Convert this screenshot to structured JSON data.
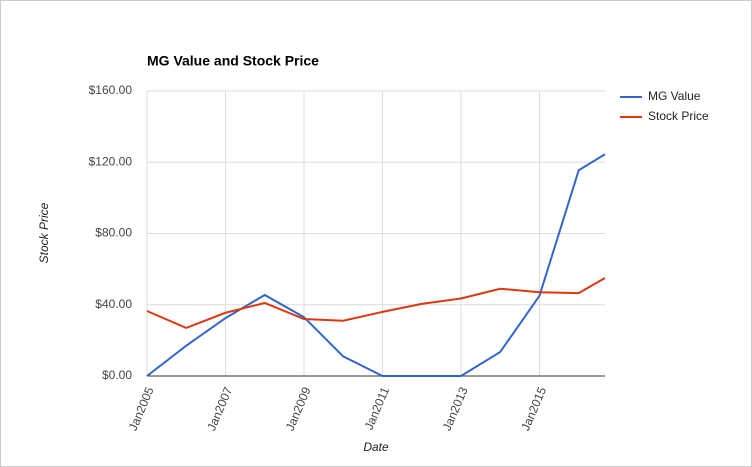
{
  "chart_data": {
    "type": "line",
    "title": "MG Value and Stock Price",
    "x_label": "Date",
    "y_label": "Stock Price",
    "x": [
      2005,
      2006,
      2007,
      2008,
      2009,
      2010,
      2011,
      2012,
      2013,
      2014,
      2015,
      2016,
      2016.67
    ],
    "series": [
      {
        "name": "MG Value",
        "color": "#3366cc",
        "values": [
          0,
          17,
          32.5,
          45.5,
          33,
          11,
          0,
          0,
          0,
          13.5,
          45,
          115.5,
          124.5
        ]
      },
      {
        "name": "Stock Price",
        "color": "#dc3912",
        "values": [
          36.5,
          27,
          35.5,
          41,
          32,
          31,
          36,
          40.5,
          43.5,
          49,
          47,
          46.5,
          55
        ]
      }
    ],
    "xlim": [
      2005,
      2016.67
    ],
    "xticks": [
      {
        "value": 2005,
        "label": "Jan2005"
      },
      {
        "value": 2007,
        "label": "Jan2007"
      },
      {
        "value": 2009,
        "label": "Jan2009"
      },
      {
        "value": 2011,
        "label": "Jan2011"
      },
      {
        "value": 2013,
        "label": "Jan2013"
      },
      {
        "value": 2015,
        "label": "Jan2015"
      }
    ],
    "ylim": [
      0,
      160
    ],
    "yticks": [
      {
        "value": 0,
        "label": "$0.00"
      },
      {
        "value": 40,
        "label": "$40.00"
      },
      {
        "value": 80,
        "label": "$80.00"
      },
      {
        "value": 120,
        "label": "$120.00"
      },
      {
        "value": 160,
        "label": "$160.00"
      }
    ],
    "grid": true,
    "legend": "right"
  }
}
